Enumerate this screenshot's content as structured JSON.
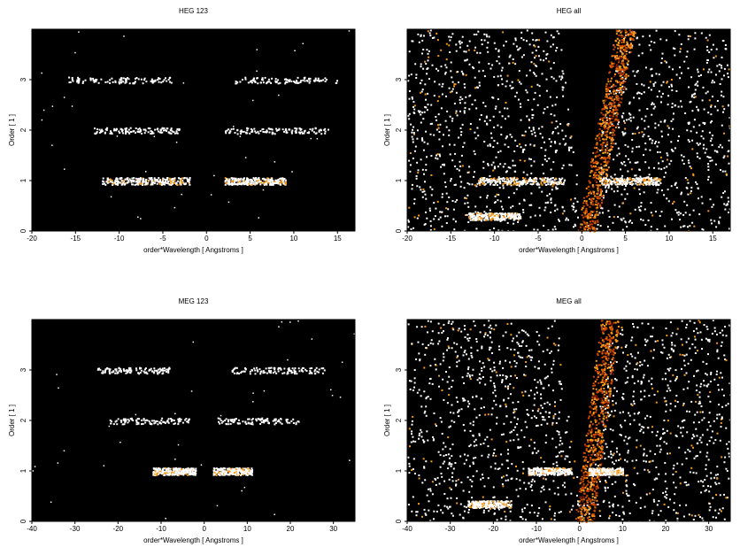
{
  "chart_data": [
    {
      "type": "heatmap",
      "title": "HEG 123",
      "xlabel": "order*Wavelength [ Angstroms ]",
      "ylabel": "Order [ 1 ]",
      "xlim": [
        -20,
        17
      ],
      "ylim": [
        0,
        4
      ],
      "xticks": [
        -20,
        -15,
        -10,
        -5,
        0,
        5,
        10,
        15
      ],
      "yticks": [
        0,
        1,
        2,
        3
      ],
      "colormap": [
        "#000000",
        "#7a1500",
        "#d04a00",
        "#f79a1a",
        "#ffffff"
      ],
      "bands": [
        {
          "order": 1,
          "x": [
            -12,
            -2
          ],
          "intensity": 1.0
        },
        {
          "order": 1,
          "x": [
            2,
            9
          ],
          "intensity": 1.0
        },
        {
          "order": 2,
          "x": [
            -13,
            -3
          ],
          "intensity": 0.35
        },
        {
          "order": 2,
          "x": [
            2,
            14
          ],
          "intensity": 0.35
        },
        {
          "order": 3,
          "x": [
            -16,
            -4
          ],
          "intensity": 0.3
        },
        {
          "order": 3,
          "x": [
            3,
            15
          ],
          "intensity": 0.3
        }
      ],
      "background": "none"
    },
    {
      "type": "heatmap",
      "title": "HEG all",
      "xlabel": "order*Wavelength [ Angstroms ]",
      "ylabel": "Order [ 1 ]",
      "xlim": [
        -20,
        17
      ],
      "ylim": [
        0,
        4
      ],
      "xticks": [
        -20,
        -15,
        -10,
        -5,
        0,
        5,
        10,
        15
      ],
      "yticks": [
        0,
        1,
        2,
        3
      ],
      "colormap": [
        "#000000",
        "#7a1500",
        "#d04a00",
        "#f79a1a",
        "#ffffff"
      ],
      "bands": [
        {
          "order": 1,
          "x": [
            -12,
            -2
          ],
          "intensity": 1.0
        },
        {
          "order": 1,
          "x": [
            2,
            9
          ],
          "intensity": 1.0
        },
        {
          "order": 0.3,
          "x": [
            -13,
            -7
          ],
          "intensity": 1.0
        }
      ],
      "diagonal_streak": {
        "x_at_order0": 0.5,
        "x_at_order4": 5,
        "intensity": 0.8
      },
      "background": "dense"
    },
    {
      "type": "heatmap",
      "title": "MEG 123",
      "xlabel": "order*Wavelength [ Angstroms ]",
      "ylabel": "Order [ 1 ]",
      "xlim": [
        -40,
        35
      ],
      "ylim": [
        0,
        4
      ],
      "xticks": [
        -40,
        -30,
        -20,
        -10,
        0,
        10,
        20,
        30
      ],
      "yticks": [
        0,
        1,
        2,
        3
      ],
      "colormap": [
        "#000000",
        "#7a1500",
        "#d04a00",
        "#f79a1a",
        "#ffffff"
      ],
      "bands": [
        {
          "order": 1,
          "x": [
            -12,
            -2
          ],
          "intensity": 1.0
        },
        {
          "order": 1,
          "x": [
            2,
            11
          ],
          "intensity": 1.0
        },
        {
          "order": 2,
          "x": [
            -22,
            -3
          ],
          "intensity": 0.3
        },
        {
          "order": 2,
          "x": [
            3,
            22
          ],
          "intensity": 0.3
        },
        {
          "order": 3,
          "x": [
            -25,
            -8
          ],
          "intensity": 0.35
        },
        {
          "order": 3,
          "x": [
            6,
            28
          ],
          "intensity": 0.35
        }
      ],
      "background": "none"
    },
    {
      "type": "heatmap",
      "title": "MEG all",
      "xlabel": "order*Wavelength [ Angstroms ]",
      "ylabel": "Order [ 1 ]",
      "xlim": [
        -40,
        35
      ],
      "ylim": [
        0,
        4
      ],
      "xticks": [
        -40,
        -30,
        -20,
        -10,
        0,
        10,
        20,
        30
      ],
      "yticks": [
        0,
        1,
        2,
        3
      ],
      "colormap": [
        "#000000",
        "#7a1500",
        "#d04a00",
        "#f79a1a",
        "#ffffff"
      ],
      "bands": [
        {
          "order": 1,
          "x": [
            -12,
            -2
          ],
          "intensity": 1.0
        },
        {
          "order": 1,
          "x": [
            2,
            10
          ],
          "intensity": 1.0
        },
        {
          "order": 0.35,
          "x": [
            -26,
            -16
          ],
          "intensity": 1.0
        }
      ],
      "diagonal_streak": {
        "x_at_order0": 1,
        "x_at_order4": 7,
        "intensity": 0.8
      },
      "background": "dense"
    }
  ]
}
